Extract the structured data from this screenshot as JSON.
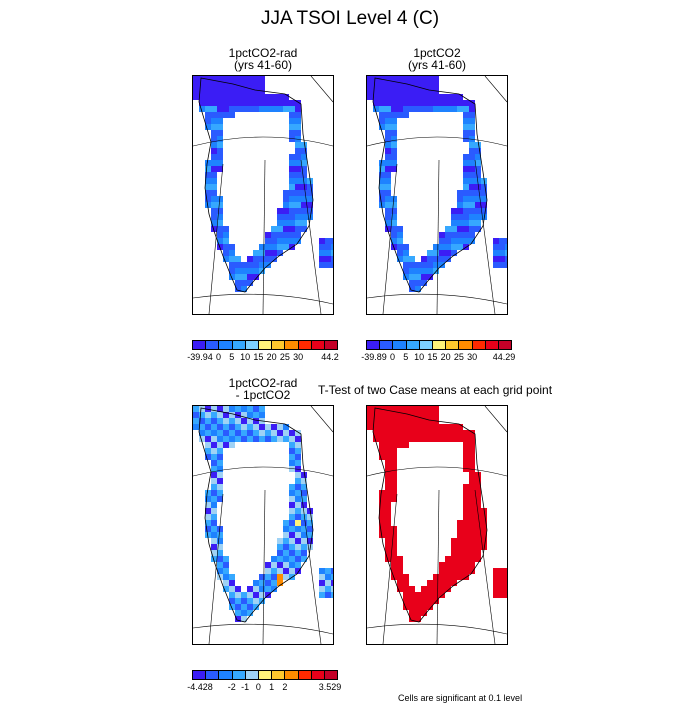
{
  "title": "JJA TSOI Level 4 (C)",
  "panels": [
    {
      "id": "p1",
      "title_line1": "1pctCO2-rad",
      "title_line2": "(yrs 41-60)"
    },
    {
      "id": "p2",
      "title_line1": "1pctCO2",
      "title_line2": "(yrs 41-60)"
    },
    {
      "id": "p3",
      "title_line1": "1pctCO2-rad",
      "title_line2": "- 1pctCO2"
    },
    {
      "id": "p4",
      "title_line1": "T-Test of two Case means at each grid point",
      "title_line2": ""
    }
  ],
  "colorbars": [
    {
      "id": "cb1",
      "colors": [
        "#3b1df5",
        "#2a5bff",
        "#1e82ff",
        "#36a8ff",
        "#7cd0ff",
        "#fff37a",
        "#ffc82e",
        "#ff8c00",
        "#ff2a00",
        "#e8001a",
        "#c40028"
      ],
      "labels": [
        "-39.94",
        "0",
        "5",
        "10",
        "15",
        "20",
        "25",
        "30",
        "44.2"
      ]
    },
    {
      "id": "cb2",
      "colors": [
        "#3b1df5",
        "#2a5bff",
        "#1e82ff",
        "#36a8ff",
        "#7cd0ff",
        "#fff37a",
        "#ffc82e",
        "#ff8c00",
        "#ff2a00",
        "#e8001a",
        "#c40028"
      ],
      "labels": [
        "-39.89",
        "0",
        "5",
        "10",
        "15",
        "20",
        "25",
        "30",
        "44.29"
      ]
    },
    {
      "id": "cb3",
      "colors": [
        "#3b1df5",
        "#2a5bff",
        "#1e82ff",
        "#36a8ff",
        "#9fd2f5",
        "#fff37a",
        "#ffc82e",
        "#ff8c00",
        "#ff2a00",
        "#e8001a",
        "#c40028"
      ],
      "labels": [
        "-4.428",
        "-2",
        "-1",
        "0",
        "1",
        "2",
        "3.529"
      ]
    }
  ],
  "significance_note": "Cells are significant at 0.1 level"
}
